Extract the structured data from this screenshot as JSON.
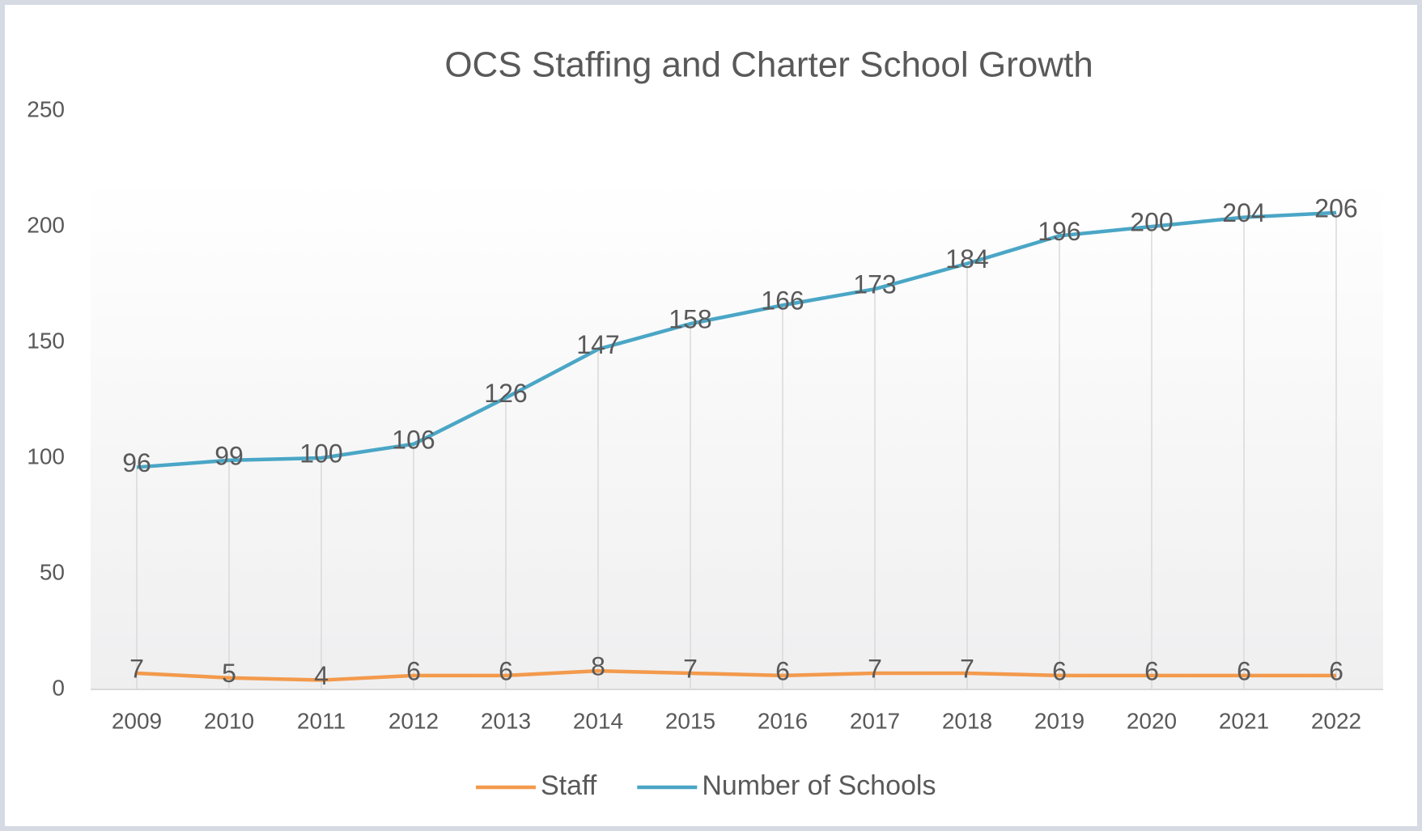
{
  "chart_data": {
    "type": "line",
    "title": "OCS Staffing and Charter School Growth",
    "categories": [
      "2009",
      "2010",
      "2011",
      "2012",
      "2013",
      "2014",
      "2015",
      "2016",
      "2017",
      "2018",
      "2019",
      "2020",
      "2021",
      "2022"
    ],
    "series": [
      {
        "name": "Staff",
        "color": "#f39a4c",
        "values": [
          7,
          5,
          4,
          6,
          6,
          8,
          7,
          6,
          7,
          7,
          6,
          6,
          6,
          6
        ]
      },
      {
        "name": "Number of Schools",
        "color": "#4aa6c6",
        "values": [
          96,
          99,
          100,
          106,
          126,
          147,
          158,
          166,
          173,
          184,
          196,
          200,
          204,
          206
        ]
      }
    ],
    "ylim": [
      0,
      250
    ],
    "yticks": [
      0,
      50,
      100,
      150,
      200,
      250
    ],
    "grid": false,
    "legend": "bottom"
  }
}
